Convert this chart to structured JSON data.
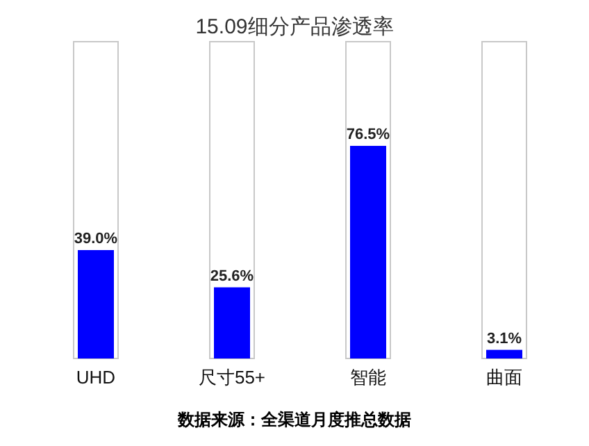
{
  "chart_data": {
    "type": "bar",
    "title": "15.09细分产品渗透率",
    "categories": [
      "UHD",
      "尺寸55+",
      "智能",
      "曲面"
    ],
    "values": [
      39.0,
      25.6,
      76.5,
      3.1
    ],
    "value_labels": [
      "39.0%",
      "25.6%",
      "76.5%",
      "3.1%"
    ],
    "color": "#0000ff",
    "annotations": [
      "数据来源：全渠道月度推总数据"
    ]
  }
}
